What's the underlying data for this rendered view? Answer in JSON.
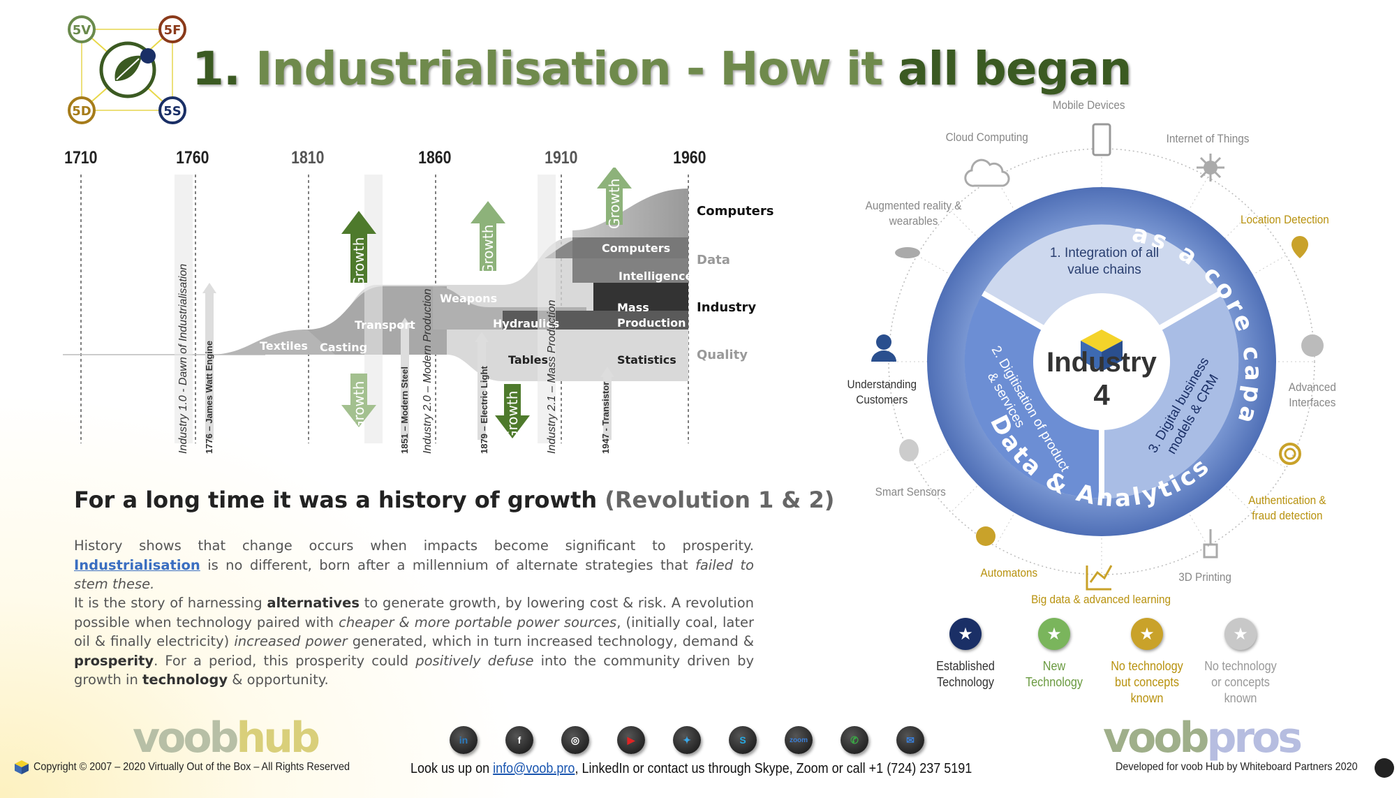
{
  "title": {
    "number": "1.",
    "part1": "Industrialisation",
    "dash": " - ",
    "part2": "How it ",
    "part3": "all began"
  },
  "logo": {
    "badges": [
      "5V",
      "5F",
      "5D",
      "5S"
    ]
  },
  "timeline": {
    "years": [
      "1710",
      "1760",
      "1810",
      "1860",
      "1910",
      "1960"
    ],
    "layers": [
      "Textiles",
      "Casting",
      "Transport",
      "Weapons",
      "Hydraulics",
      "Tables",
      "Statistics",
      "Computers",
      "Intelligence",
      "Mass Production"
    ],
    "mass_production_line1": "Mass",
    "mass_production_line2": "Production",
    "right_labels": [
      "Computers",
      "Data",
      "Industry",
      "Quality"
    ],
    "milestones": [
      "Industry 1.0 - Dawn of Industrialisation",
      "1776 – James Watt Engine",
      "1851 – Modern Steel",
      "Industry 2.0 – Modern Production",
      "1879 – Electric Light",
      "Industry 2.1 – Mass Production",
      "1947 - Transistor"
    ],
    "arrow_label": "Growth"
  },
  "text": {
    "subhead": "For a long time it was a history of growth ",
    "subhead_suffix": "(Revolution 1 & 2)",
    "p1_a": "History shows that change occurs when impacts become significant to prosperity. ",
    "p1_link": "Industrialisation",
    "p1_b": " is no different, born after a millennium of alternate strategies that ",
    "p1_em": "failed to stem these.",
    "p2_a": "It is the story of harnessing ",
    "p2_b1": "alternatives",
    "p2_c": " to generate growth, by lowering cost & risk. A revolution possible when technology paired with ",
    "p2_em1": "cheaper & more portable power sources",
    "p2_d": ", (initially coal, later oil & finally electricity) ",
    "p2_em2": "increased power",
    "p2_e": " generated, which in turn increased technology, demand & ",
    "p2_b2": "prosperity",
    "p2_f": ". For a period, this prosperity could ",
    "p2_em3": "positively defuse",
    "p2_g": " into the community driven by growth in ",
    "p2_b3": "technology",
    "p2_h": " & opportunity."
  },
  "industry4": {
    "center_word": "Industry",
    "center_num": "4",
    "segment1_line1": "1. Integration of all",
    "segment1_line2": "value chains",
    "segment2_line1": "2. Digitisation of product",
    "segment2_line2": "& services",
    "segment3_line1": "3. Digital business",
    "segment3_line2": "models & CRM",
    "ring_top": "Data & Analytics as a core capacity",
    "ring_bottom": "Data & Analytics",
    "ring_top_short": "as a core capacity",
    "outer": {
      "mobile": "Mobile Devices",
      "cloud": "Cloud Computing",
      "iot": "Internet of Things",
      "ar1": "Augmented reality &",
      "ar2": "wearables",
      "location": "Location Detection",
      "cust1": "Understanding",
      "cust2": "Customers",
      "adv1": "Advanced",
      "adv2": "Interfaces",
      "sensors": "Smart Sensors",
      "auth1": "Authentication &",
      "auth2": "fraud detection",
      "automatons": "Automatons",
      "printing": "3D Printing",
      "bigdata": "Big data & advanced learning"
    }
  },
  "legend": [
    {
      "l1": "Established",
      "l2": "Technology",
      "l3": "",
      "color": "#1a2f66",
      "textColor": "#333"
    },
    {
      "l1": "New",
      "l2": "Technology",
      "l3": "",
      "color": "#7ab55c",
      "textColor": "#6a9a40"
    },
    {
      "l1": "No technology",
      "l2": "but concepts",
      "l3": "known",
      "color": "#c9a22a",
      "textColor": "#b8920f"
    },
    {
      "l1": "No technology",
      "l2": "or concepts",
      "l3": "known",
      "color": "#c8c8c8",
      "textColor": "#999"
    }
  ],
  "footer": {
    "voobhub_a": "voob",
    "voobhub_b": "hub",
    "voobpros_a": "voob",
    "voobpros_b": "pros",
    "copyright": "Copyright © 2007 – 2020 Virtually Out of the Box – All Rights Reserved",
    "contact_a": "Look us up on ",
    "contact_email": "info@voob.pro",
    "contact_b": ", LinkedIn or contact us through Skype, Zoom or call +1 (724) 237 5191",
    "developed": "Developed for voob Hub by Whiteboard Partners 2020",
    "social": [
      {
        "name": "linkedin",
        "glyph": "in",
        "color": "#2a7bbf"
      },
      {
        "name": "facebook",
        "glyph": "f",
        "color": "#ffffff"
      },
      {
        "name": "instagram",
        "glyph": "◎",
        "color": "#ffffff"
      },
      {
        "name": "youtube",
        "glyph": "▶",
        "color": "#e02424"
      },
      {
        "name": "twitter",
        "glyph": "✦",
        "color": "#3aa7e8"
      },
      {
        "name": "skype",
        "glyph": "S",
        "color": "#27a9e1"
      },
      {
        "name": "zoom",
        "glyph": "zoom",
        "color": "#3a7fd8"
      },
      {
        "name": "phone",
        "glyph": "✆",
        "color": "#3aaa45"
      },
      {
        "name": "email",
        "glyph": "✉",
        "color": "#3a7fd8"
      }
    ]
  }
}
